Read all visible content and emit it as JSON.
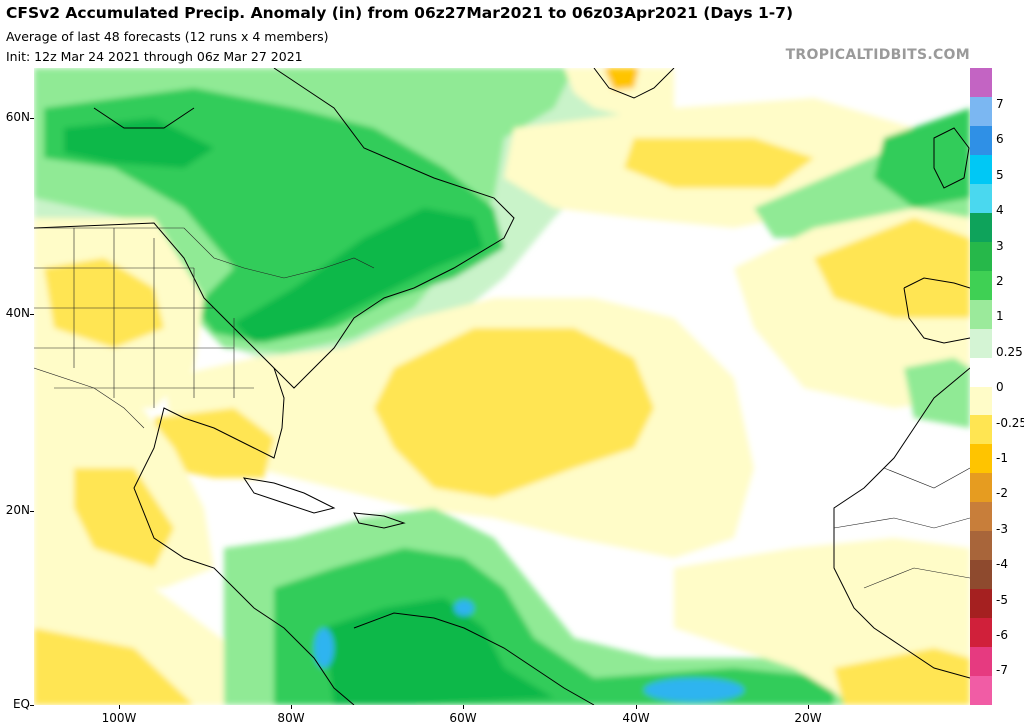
{
  "header": {
    "title": "CFSv2 Accumulated Precip. Anomaly (in) from 06z27Mar2021 to 06z03Apr2021 (Days 1-7)",
    "subtitle": "Average of last 48 forecasts (12 runs x 4 members)",
    "init": "Init: 12z Mar 24 2021 through 06z Mar 27 2021",
    "brand": "TROPICALTIDBITS.COM"
  },
  "axes": {
    "lat": [
      "60N",
      "40N",
      "20N",
      "EQ"
    ],
    "lon": [
      "100W",
      "80W",
      "60W",
      "40W",
      "20W"
    ]
  },
  "colorbar": {
    "labels": [
      "7",
      "6",
      "5",
      "4",
      "3",
      "2",
      "1",
      "0.25",
      "0",
      "-0.25",
      "-1",
      "-2",
      "-3",
      "-4",
      "-5",
      "-6",
      "-7"
    ],
    "colors": [
      "#c364c3",
      "#7bb7f2",
      "#2f90e6",
      "#00c8f5",
      "#4ad8ef",
      "#0ea35b",
      "#26b84a",
      "#3fd054",
      "#9bea9b",
      "#d4f4d4",
      "#ffffff",
      "#fffcc8",
      "#ffe552",
      "#ffc400",
      "#e69c20",
      "#c87e3a",
      "#a8653a",
      "#8e4a2e",
      "#a52020",
      "#d0203a",
      "#e63a80",
      "#f15ca5"
    ]
  },
  "colors": {
    "green_heavy": "#0fb84a",
    "green": "#33cc5a",
    "green_light": "#90ea95",
    "green_pale": "#c9f3c9",
    "yellow_pale": "#fffcc8",
    "yellow": "#ffe552",
    "orange": "#ffc400",
    "blue": "#2fb4f0"
  }
}
